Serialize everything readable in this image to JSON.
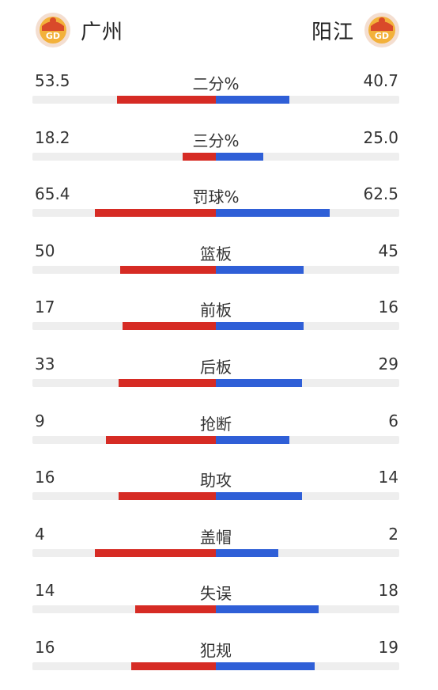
{
  "teams": {
    "home": {
      "name": "广州",
      "logo_text": "GD"
    },
    "away": {
      "name": "阳江",
      "logo_text": "GD"
    }
  },
  "colors": {
    "home": "#d62b24",
    "away": "#2f5fd7",
    "track": "#eeeeee"
  },
  "stats": [
    {
      "label": "二分%",
      "home": "53.5",
      "away": "40.7",
      "home_fill": 0.27,
      "away_fill": 0.2
    },
    {
      "label": "三分%",
      "home": "18.2",
      "away": "25.0",
      "home_fill": 0.09,
      "away_fill": 0.13
    },
    {
      "label": "罚球%",
      "home": "65.4",
      "away": "62.5",
      "home_fill": 0.33,
      "away_fill": 0.31
    },
    {
      "label": "篮板",
      "home": "50",
      "away": "45",
      "home_fill": 0.26,
      "away_fill": 0.24
    },
    {
      "label": "前板",
      "home": "17",
      "away": "16",
      "home_fill": 0.255,
      "away_fill": 0.24
    },
    {
      "label": "后板",
      "home": "33",
      "away": "29",
      "home_fill": 0.265,
      "away_fill": 0.235
    },
    {
      "label": "抢断",
      "home": "9",
      "away": "6",
      "home_fill": 0.3,
      "away_fill": 0.2
    },
    {
      "label": "助攻",
      "home": "16",
      "away": "14",
      "home_fill": 0.265,
      "away_fill": 0.235
    },
    {
      "label": "盖帽",
      "home": "4",
      "away": "2",
      "home_fill": 0.33,
      "away_fill": 0.17
    },
    {
      "label": "失误",
      "home": "14",
      "away": "18",
      "home_fill": 0.22,
      "away_fill": 0.28
    },
    {
      "label": "犯规",
      "home": "16",
      "away": "19",
      "home_fill": 0.23,
      "away_fill": 0.27
    }
  ]
}
